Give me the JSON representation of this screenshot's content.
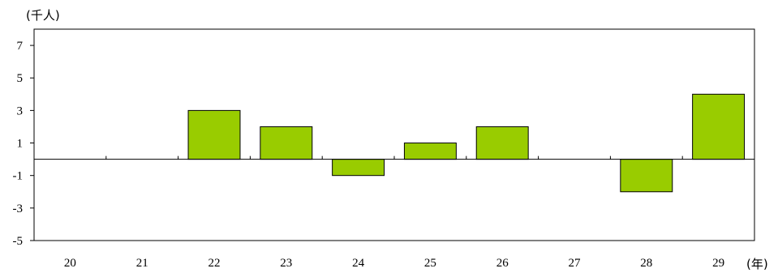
{
  "chart_data": {
    "type": "bar",
    "y_unit": "(千人)",
    "x_unit": "(年)",
    "categories": [
      "20",
      "21",
      "22",
      "23",
      "24",
      "25",
      "26",
      "27",
      "28",
      "29"
    ],
    "values": [
      0,
      0,
      3,
      2,
      -1,
      1,
      2,
      0,
      -2,
      4
    ],
    "ylim": [
      -5,
      8
    ],
    "yticks": [
      7,
      5,
      3,
      1,
      -1,
      -3,
      -5
    ],
    "ytick_labels": [
      "7",
      "5",
      "3",
      "1",
      "-1",
      "-3",
      "-5"
    ],
    "bar_color": "#99cc00",
    "grid": false,
    "legend": "none"
  }
}
